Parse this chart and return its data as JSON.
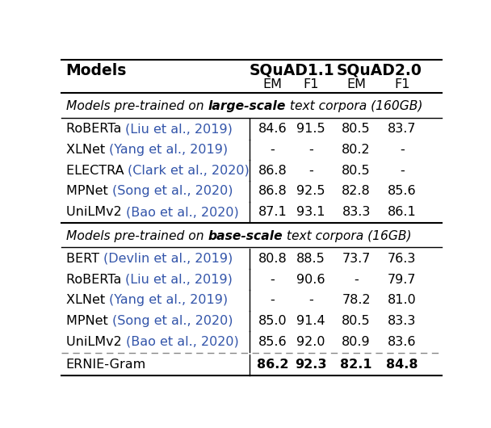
{
  "section1_rows": [
    [
      "RoBERTa ",
      "(Liu et al., 2019)",
      "84.6",
      "91.5",
      "80.5",
      "83.7"
    ],
    [
      "XLNet ",
      "(Yang et al., 2019)",
      "-",
      "-",
      "80.2",
      "-"
    ],
    [
      "ELECTRA ",
      "(Clark et al., 2020)",
      "86.8",
      "-",
      "80.5",
      "-"
    ],
    [
      "MPNet ",
      "(Song et al., 2020)",
      "86.8",
      "92.5",
      "82.8",
      "85.6"
    ],
    [
      "UniLMv2 ",
      "(Bao et al., 2020)",
      "87.1",
      "93.1",
      "83.3",
      "86.1"
    ]
  ],
  "section2_rows": [
    [
      "BERT ",
      "(Devlin et al., 2019)",
      "80.8",
      "88.5",
      "73.7",
      "76.3"
    ],
    [
      "RoBERTa ",
      "(Liu et al., 2019)",
      "-",
      "90.6",
      "-",
      "79.7"
    ],
    [
      "XLNet ",
      "(Yang et al., 2019)",
      "-",
      "-",
      "78.2",
      "81.0"
    ],
    [
      "MPNet ",
      "(Song et al., 2020)",
      "85.0",
      "91.4",
      "80.5",
      "83.3"
    ],
    [
      "UniLMv2 ",
      "(Bao et al., 2020)",
      "85.6",
      "92.0",
      "80.9",
      "83.6"
    ]
  ],
  "ernie_row": [
    "ERNIE-Gram",
    "86.2",
    "92.3",
    "82.1",
    "84.8"
  ],
  "cite_color": "#3355aa",
  "text_color": "#000000",
  "bg_color": "#ffffff",
  "fontsize": 11.5,
  "header_fontsize": 13.5,
  "section_fontsize": 11.2,
  "vline_x": 0.495
}
